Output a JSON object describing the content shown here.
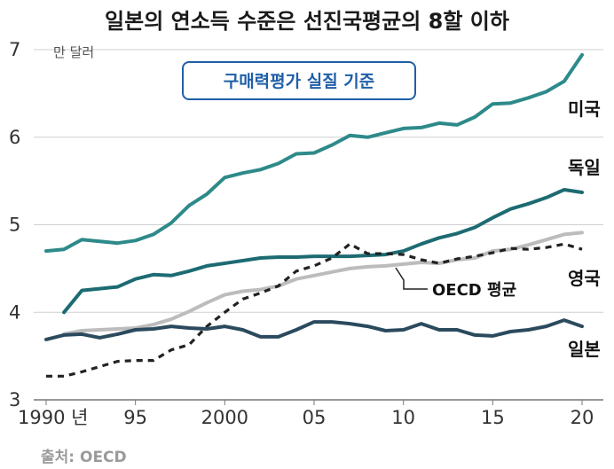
{
  "chart_data": {
    "type": "line",
    "title": "일본의 연소득 수준은 선진국평균의 8할 이하",
    "subtitle": "구매력평가 실질 기준",
    "unit_label": "만 달러",
    "source": "출처: OECD",
    "ylim": [
      3,
      7
    ],
    "xlim": [
      1990,
      2020
    ],
    "y_ticks": [
      "3",
      "4",
      "5",
      "6",
      "7"
    ],
    "x_ticks": [
      {
        "x": 1990,
        "label": "1990 년"
      },
      {
        "x": 1995,
        "label": "95"
      },
      {
        "x": 2000,
        "label": "2000"
      },
      {
        "x": 2005,
        "label": "05"
      },
      {
        "x": 2010,
        "label": "10"
      },
      {
        "x": 2015,
        "label": "15"
      },
      {
        "x": 2020,
        "label": "20"
      }
    ],
    "grid": "horizontal",
    "series": [
      {
        "name": "미국",
        "color": "#2e8a8a",
        "style": "solid",
        "x": [
          1990,
          1991,
          1992,
          1993,
          1994,
          1995,
          1996,
          1997,
          1998,
          1999,
          2000,
          2001,
          2002,
          2003,
          2004,
          2005,
          2006,
          2007,
          2008,
          2009,
          2010,
          2011,
          2012,
          2013,
          2014,
          2015,
          2016,
          2017,
          2018,
          2019,
          2020
        ],
        "y": [
          4.7,
          4.72,
          4.83,
          4.81,
          4.79,
          4.82,
          4.89,
          5.02,
          5.22,
          5.35,
          5.54,
          5.59,
          5.63,
          5.7,
          5.81,
          5.82,
          5.91,
          6.02,
          6.0,
          6.05,
          6.1,
          6.11,
          6.16,
          6.14,
          6.23,
          6.38,
          6.39,
          6.45,
          6.52,
          6.64,
          6.94
        ]
      },
      {
        "name": "독일",
        "color": "#1d6b72",
        "style": "solid",
        "x": [
          1991,
          1992,
          1993,
          1994,
          1995,
          1996,
          1997,
          1998,
          1999,
          2000,
          2001,
          2002,
          2003,
          2004,
          2005,
          2006,
          2007,
          2008,
          2009,
          2010,
          2011,
          2012,
          2013,
          2014,
          2015,
          2016,
          2017,
          2018,
          2019,
          2020
        ],
        "y": [
          4.0,
          4.25,
          4.27,
          4.29,
          4.38,
          4.43,
          4.42,
          4.47,
          4.53,
          4.56,
          4.59,
          4.62,
          4.63,
          4.63,
          4.64,
          4.64,
          4.64,
          4.65,
          4.66,
          4.7,
          4.78,
          4.85,
          4.9,
          4.97,
          5.08,
          5.18,
          5.24,
          5.31,
          5.4,
          5.37
        ]
      },
      {
        "name": "영국",
        "color": "#bcbcbc",
        "style": "solid",
        "x": [
          1991,
          1992,
          1993,
          1994,
          1995,
          1996,
          1997,
          1998,
          1999,
          2000,
          2001,
          2002,
          2003,
          2004,
          2005,
          2006,
          2007,
          2008,
          2009,
          2010,
          2011,
          2012,
          2013,
          2014,
          2015,
          2016,
          2017,
          2018,
          2019,
          2020
        ],
        "y": [
          3.75,
          3.79,
          3.8,
          3.81,
          3.82,
          3.86,
          3.92,
          4.01,
          4.11,
          4.2,
          4.24,
          4.26,
          4.3,
          4.38,
          4.42,
          4.46,
          4.5,
          4.52,
          4.53,
          4.55,
          4.57,
          4.56,
          4.6,
          4.62,
          4.7,
          4.72,
          4.77,
          4.83,
          4.89,
          4.91
        ]
      },
      {
        "name": "OECD 평균",
        "color": "#222222",
        "style": "dashed",
        "x": [
          1990,
          1991,
          1992,
          1993,
          1994,
          1995,
          1996,
          1997,
          1998,
          1999,
          2000,
          2001,
          2002,
          2003,
          2004,
          2005,
          2006,
          2007,
          2008,
          2009,
          2010,
          2011,
          2012,
          2013,
          2014,
          2015,
          2016,
          2017,
          2018,
          2019,
          2020
        ],
        "y": [
          3.27,
          3.27,
          3.32,
          3.38,
          3.44,
          3.45,
          3.45,
          3.57,
          3.63,
          3.84,
          4.0,
          4.15,
          4.22,
          4.3,
          4.47,
          4.53,
          4.62,
          4.78,
          4.67,
          4.67,
          4.66,
          4.6,
          4.56,
          4.61,
          4.64,
          4.68,
          4.73,
          4.72,
          4.74,
          4.78,
          4.72
        ]
      },
      {
        "name": "일본",
        "color": "#2b4a5e",
        "style": "solid",
        "x": [
          1990,
          1991,
          1992,
          1993,
          1994,
          1995,
          1996,
          1997,
          1998,
          1999,
          2000,
          2001,
          2002,
          2003,
          2004,
          2005,
          2006,
          2007,
          2008,
          2009,
          2010,
          2011,
          2012,
          2013,
          2014,
          2015,
          2016,
          2017,
          2018,
          2019,
          2020
        ],
        "y": [
          3.69,
          3.74,
          3.75,
          3.71,
          3.75,
          3.8,
          3.81,
          3.84,
          3.82,
          3.81,
          3.84,
          3.8,
          3.72,
          3.72,
          3.8,
          3.89,
          3.89,
          3.87,
          3.84,
          3.79,
          3.8,
          3.87,
          3.8,
          3.8,
          3.74,
          3.73,
          3.78,
          3.8,
          3.84,
          3.91,
          3.84
        ]
      }
    ],
    "labels": [
      {
        "text": "미국",
        "series": "미국"
      },
      {
        "text": "독일",
        "series": "독일"
      },
      {
        "text": "영국",
        "series": "영국"
      },
      {
        "text": "일본",
        "series": "일본"
      },
      {
        "text": "OECD 평균",
        "series": "OECD 평균"
      }
    ]
  }
}
